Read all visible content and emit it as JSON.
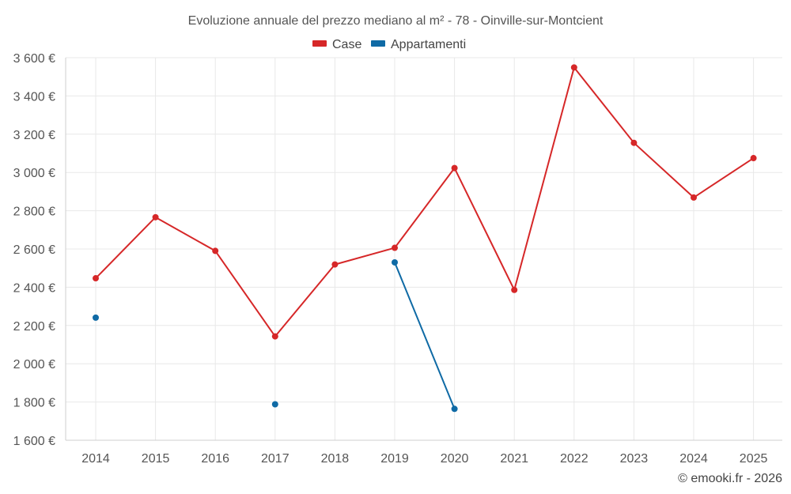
{
  "chart_data": {
    "type": "line",
    "title": "Evoluzione annuale del prezzo mediano al m² - 78 - Oinville-sur-Montcient",
    "x": [
      2014,
      2015,
      2016,
      2017,
      2018,
      2019,
      2020,
      2021,
      2022,
      2023,
      2024,
      2025
    ],
    "x_tick_labels": [
      "2014",
      "2015",
      "2016",
      "2017",
      "2018",
      "2019",
      "2020",
      "2021",
      "2022",
      "2023",
      "2024",
      "2025"
    ],
    "ylim": [
      1600,
      3600
    ],
    "y_ticks": [
      1600,
      1800,
      2000,
      2200,
      2400,
      2600,
      2800,
      3000,
      3200,
      3400,
      3600
    ],
    "y_tick_labels": [
      "1 600 €",
      "1 800 €",
      "2 000 €",
      "2 200 €",
      "2 400 €",
      "2 600 €",
      "2 800 €",
      "3 000 €",
      "3 200 €",
      "3 400 €",
      "3 600 €"
    ],
    "grid": true,
    "legend_position": "top-center",
    "series": [
      {
        "name": "Case",
        "color": "#d62728",
        "values": [
          2447,
          2766,
          2590,
          2143,
          2519,
          2606,
          3023,
          2386,
          3549,
          3155,
          2869,
          3075
        ]
      },
      {
        "name": "Appartamenti",
        "color": "#0f6aa5",
        "values": [
          2241,
          null,
          null,
          1788,
          null,
          2530,
          1764,
          null,
          null,
          null,
          null,
          null
        ]
      }
    ]
  },
  "credit": "© emooki.fr - 2026"
}
